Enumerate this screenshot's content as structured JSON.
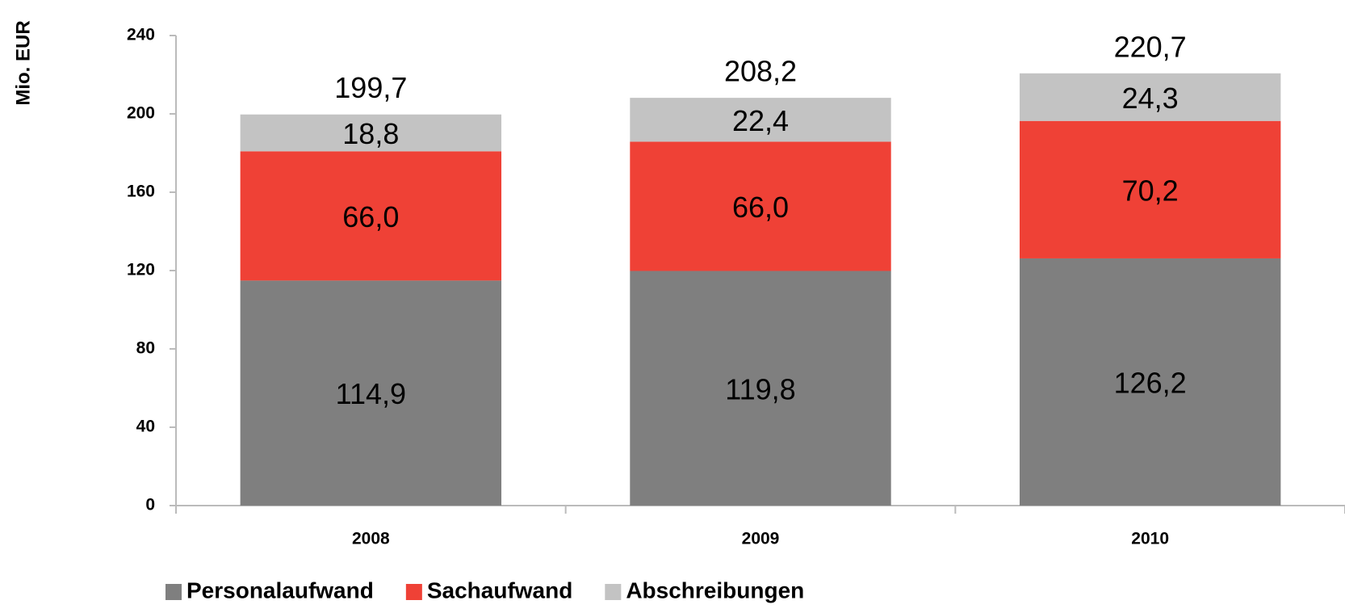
{
  "chart_data": {
    "type": "stacked_bar",
    "y_axis_label": "Mio. EUR",
    "categories": [
      "2008",
      "2009",
      "2010"
    ],
    "series": [
      {
        "name": "Personalaufwand",
        "color": "#7f7f7f",
        "values": [
          114.9,
          119.8,
          126.2
        ],
        "value_labels": [
          "114,9",
          "119,8",
          "126,2"
        ]
      },
      {
        "name": "Sachaufwand",
        "color": "#ef4136",
        "values": [
          66.0,
          66.0,
          70.2
        ],
        "value_labels": [
          "66,0",
          "66,0",
          "70,2"
        ]
      },
      {
        "name": "Abschreibungen",
        "color": "#c3c3c3",
        "values": [
          18.8,
          22.4,
          24.3
        ],
        "value_labels": [
          "18,8",
          "22,4",
          "24,3"
        ]
      }
    ],
    "totals": {
      "values": [
        199.7,
        208.2,
        220.7
      ],
      "value_labels": [
        "199,7",
        "208,2",
        "220,7"
      ]
    },
    "ylim": [
      0,
      240
    ],
    "yticks": [
      0,
      40,
      80,
      120,
      160,
      200,
      240
    ],
    "legend": "bottom"
  }
}
